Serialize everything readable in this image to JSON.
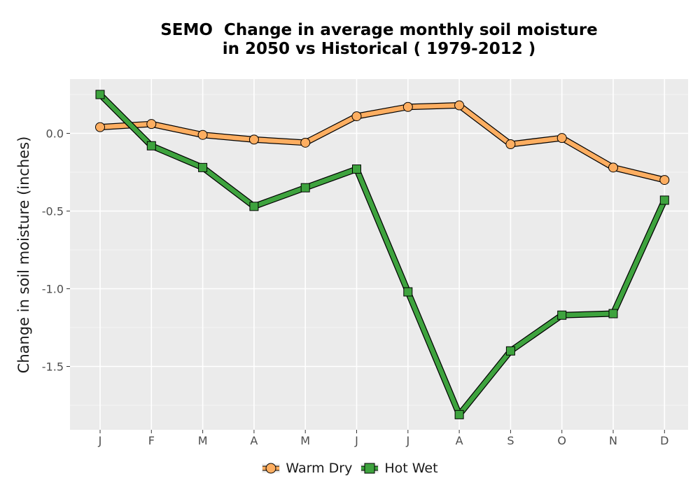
{
  "chart_data": {
    "type": "line",
    "title_lines": [
      "SEMO  Change in average monthly soil moisture",
      "in 2050 vs Historical ( 1979-2012 )"
    ],
    "xlabel": "",
    "ylabel": "Change in soil moisture (inches)",
    "categories": [
      "J",
      "F",
      "M",
      "A",
      "M",
      "J",
      "J",
      "A",
      "S",
      "O",
      "N",
      "D"
    ],
    "y_ticks": [
      0.0,
      -0.5,
      -1.0,
      -1.5
    ],
    "y_tick_labels": [
      "0.0",
      "-0.5",
      "-1.0",
      "-1.5"
    ],
    "ylim": [
      -1.9,
      0.35
    ],
    "grid": true,
    "legend_position": "bottom",
    "series": [
      {
        "name": "Warm Dry",
        "marker": "circle",
        "color": "#fdae61",
        "values": [
          0.04,
          0.06,
          -0.01,
          -0.04,
          -0.06,
          0.11,
          0.17,
          0.18,
          -0.07,
          -0.03,
          -0.22,
          -0.3
        ]
      },
      {
        "name": "Hot Wet",
        "marker": "square",
        "color": "#3ea33e",
        "values": [
          0.25,
          -0.08,
          -0.22,
          -0.47,
          -0.35,
          -0.23,
          -1.02,
          -1.81,
          -1.4,
          -1.17,
          -1.16,
          -0.43
        ]
      }
    ]
  }
}
